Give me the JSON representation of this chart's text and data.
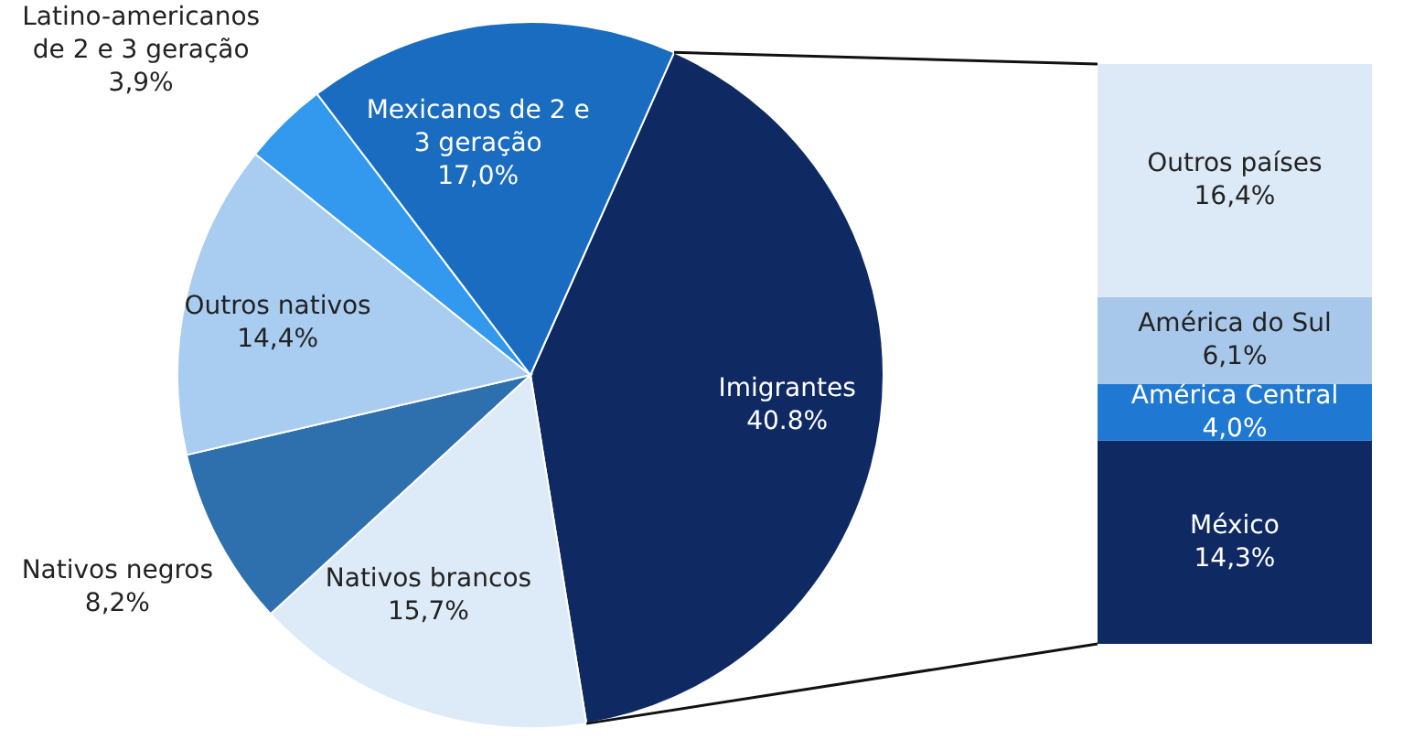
{
  "chart_data": [
    {
      "type": "pie",
      "categories": [
        "Imigrantes",
        "Nativos brancos",
        "Nativos negros",
        "Outros nativos",
        "Latino-americanos de 2 e 3 geração",
        "Mexicanos de 2 e 3 geração"
      ],
      "values": [
        40.8,
        15.7,
        8.2,
        14.4,
        3.9,
        17.0
      ],
      "value_labels": [
        "40.8%",
        "15,7%",
        "8,2%",
        "14,4%",
        "3,9%",
        "17,0%"
      ],
      "colors": [
        "#0f2a63",
        "#ddeaf7",
        "#2e6fad",
        "#a9cdf0",
        "#3399ee",
        "#1a6cc0"
      ]
    },
    {
      "type": "bar",
      "stacked": true,
      "categories": [
        null
      ],
      "series": [
        {
          "name": "México",
          "color": "#0f2a63",
          "values": [
            14.3
          ],
          "value_labels": [
            "14,3%"
          ]
        },
        {
          "name": "América Central",
          "color": "#1f78d1",
          "values": [
            4.0
          ],
          "value_labels": [
            "4,0%"
          ]
        },
        {
          "name": "América do Sul",
          "color": "#a7c8ea",
          "values": [
            6.1
          ],
          "value_labels": [
            "6,1%"
          ]
        },
        {
          "name": "Outros países",
          "color": "#dce9f7",
          "values": [
            16.4
          ],
          "value_labels": [
            "16,4%"
          ]
        }
      ]
    }
  ]
}
